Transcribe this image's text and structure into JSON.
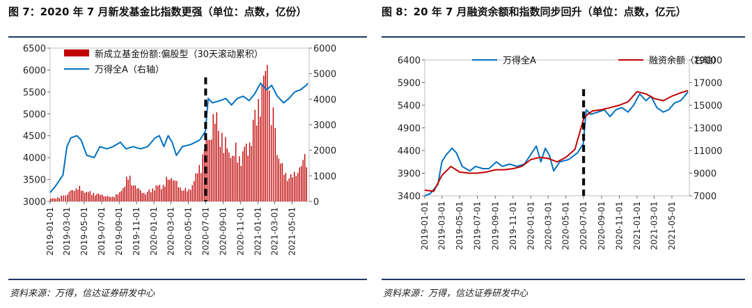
{
  "left": {
    "title": "图 7：2020 年 7 月新发基金比指数更强（单位：点数，亿份）",
    "source": "资料来源：万得，信达证券研发中心"
  },
  "right": {
    "title": "图 8：20 年 7 月融资余额和指数同步回升（单位：点数，亿元）",
    "source": "资料来源：万得，信达证券研发中心"
  },
  "chart_data": [
    {
      "type": "bar",
      "title": "",
      "legend": [
        "新成立基金份额:偏股型（30天滚动累积）",
        "万得全A（右轴）"
      ],
      "legend_position": "top-left",
      "x_ticks": [
        "2019-01-01",
        "2019-03-01",
        "2019-05-01",
        "2019-07-01",
        "2019-09-01",
        "2019-11-01",
        "2020-01-01",
        "2020-03-01",
        "2020-05-01",
        "2020-07-01",
        "2020-09-01",
        "2020-11-01",
        "2021-01-01",
        "2021-03-01",
        "2021-05-01"
      ],
      "left_axis": {
        "min": 3000,
        "max": 6500,
        "ticks": [
          3000,
          3500,
          4000,
          4500,
          5000,
          5500,
          6000,
          6500
        ]
      },
      "right_axis": {
        "min": 0,
        "max": 6000,
        "ticks": [
          0,
          1000,
          2000,
          3000,
          4000,
          5000,
          6000
        ]
      },
      "event_marker_date": "2020-07-01",
      "series": [
        {
          "name": "新成立基金份额:偏股型（30天滚动累积）",
          "kind": "bar",
          "color": "#c00000",
          "axis": "right",
          "x": [
            "2019-01-01",
            "2019-02-01",
            "2019-03-01",
            "2019-04-01",
            "2019-05-01",
            "2019-06-01",
            "2019-07-01",
            "2019-08-01",
            "2019-09-01",
            "2019-10-01",
            "2019-11-01",
            "2019-12-01",
            "2020-01-01",
            "2020-02-01",
            "2020-03-01",
            "2020-04-01",
            "2020-05-01",
            "2020-06-01",
            "2020-07-01",
            "2020-08-01",
            "2020-09-01",
            "2020-10-01",
            "2020-11-01",
            "2020-12-01",
            "2021-01-01",
            "2021-02-01",
            "2021-03-01",
            "2021-04-01",
            "2021-05-01",
            "2021-06-01",
            "2021-06-25"
          ],
          "values": [
            100,
            150,
            300,
            550,
            400,
            300,
            250,
            150,
            300,
            900,
            500,
            300,
            550,
            650,
            1000,
            500,
            400,
            1050,
            2100,
            3200,
            2200,
            1900,
            1800,
            2300,
            3800,
            5100,
            2300,
            1000,
            900,
            1400,
            1900
          ]
        },
        {
          "name": "万得全A（右轴）",
          "kind": "line",
          "color": "#0070c0",
          "axis": "left",
          "x": [
            "2019-01-01",
            "2019-01-20",
            "2019-02-15",
            "2019-03-01",
            "2019-03-15",
            "2019-04-05",
            "2019-04-20",
            "2019-05-10",
            "2019-06-05",
            "2019-06-25",
            "2019-07-20",
            "2019-08-10",
            "2019-09-05",
            "2019-09-25",
            "2019-10-20",
            "2019-11-15",
            "2019-12-10",
            "2020-01-05",
            "2020-01-20",
            "2020-02-05",
            "2020-02-20",
            "2020-03-05",
            "2020-03-20",
            "2020-04-10",
            "2020-05-10",
            "2020-06-10",
            "2020-06-30",
            "2020-07-10",
            "2020-07-25",
            "2020-08-20",
            "2020-09-10",
            "2020-09-30",
            "2020-10-20",
            "2020-11-10",
            "2020-12-01",
            "2020-12-20",
            "2021-01-10",
            "2021-02-01",
            "2021-02-18",
            "2021-03-10",
            "2021-04-01",
            "2021-04-20",
            "2021-05-10",
            "2021-05-31",
            "2021-06-20",
            "2021-06-25"
          ],
          "values": [
            3200,
            3350,
            3600,
            4250,
            4450,
            4500,
            4400,
            4050,
            4000,
            4250,
            4200,
            4250,
            4350,
            4200,
            4250,
            4200,
            4250,
            4450,
            4500,
            4250,
            4500,
            4350,
            4050,
            4250,
            4300,
            4400,
            4600,
            5350,
            5250,
            5300,
            5350,
            5200,
            5350,
            5400,
            5300,
            5450,
            5700,
            5550,
            5650,
            5400,
            5250,
            5350,
            5500,
            5550,
            5650,
            5700
          ]
        }
      ]
    },
    {
      "type": "line",
      "title": "",
      "legend": [
        "万得全A",
        "融资余额（右轴）"
      ],
      "legend_position": "top-center",
      "x_ticks": [
        "2019-01-01",
        "2019-03-01",
        "2019-05-01",
        "2019-07-01",
        "2019-09-01",
        "2019-11-01",
        "2020-01-01",
        "2020-03-01",
        "2020-05-01",
        "2020-07-01",
        "2020-09-01",
        "2020-11-01",
        "2021-01-01",
        "2021-03-01",
        "2021-05-01"
      ],
      "left_axis": {
        "min": 3400,
        "max": 6400,
        "ticks": [
          3400,
          3900,
          4400,
          4900,
          5400,
          5900,
          6400
        ]
      },
      "right_axis": {
        "min": 7000,
        "max": 19000,
        "ticks": [
          7000,
          9000,
          11000,
          13000,
          15000,
          17000,
          19000
        ]
      },
      "event_marker_date": "2020-07-01",
      "series": [
        {
          "name": "万得全A",
          "kind": "line",
          "color": "#0070c0",
          "axis": "left",
          "x": [
            "2019-01-01",
            "2019-01-20",
            "2019-02-15",
            "2019-03-01",
            "2019-03-15",
            "2019-04-05",
            "2019-04-20",
            "2019-05-10",
            "2019-06-05",
            "2019-06-25",
            "2019-07-20",
            "2019-08-10",
            "2019-09-05",
            "2019-09-25",
            "2019-10-20",
            "2019-11-15",
            "2019-12-10",
            "2020-01-05",
            "2020-01-20",
            "2020-02-05",
            "2020-02-20",
            "2020-03-05",
            "2020-03-20",
            "2020-04-10",
            "2020-05-10",
            "2020-06-10",
            "2020-06-30",
            "2020-07-10",
            "2020-07-25",
            "2020-08-20",
            "2020-09-10",
            "2020-09-30",
            "2020-10-20",
            "2020-11-10",
            "2020-12-01",
            "2020-12-20",
            "2021-01-10",
            "2021-02-01",
            "2021-02-18",
            "2021-03-10",
            "2021-04-01",
            "2021-04-20",
            "2021-05-10",
            "2021-05-31",
            "2021-06-20",
            "2021-06-25"
          ],
          "values": [
            3400,
            3450,
            3650,
            4150,
            4300,
            4450,
            4350,
            4050,
            3950,
            4050,
            4000,
            4000,
            4150,
            4050,
            4100,
            4050,
            4100,
            4350,
            4500,
            4150,
            4450,
            4300,
            3950,
            4150,
            4200,
            4350,
            4550,
            5300,
            5200,
            5250,
            5300,
            5150,
            5300,
            5350,
            5250,
            5400,
            5650,
            5500,
            5600,
            5350,
            5250,
            5300,
            5450,
            5500,
            5650,
            5700
          ]
        },
        {
          "name": "融资余额（右轴）",
          "kind": "line",
          "color": "#c00000",
          "axis": "right",
          "x": [
            "2019-01-01",
            "2019-02-01",
            "2019-03-01",
            "2019-04-01",
            "2019-05-01",
            "2019-06-01",
            "2019-07-01",
            "2019-08-01",
            "2019-09-01",
            "2019-10-01",
            "2019-11-01",
            "2019-12-01",
            "2020-01-01",
            "2020-02-01",
            "2020-03-01",
            "2020-04-01",
            "2020-05-01",
            "2020-06-01",
            "2020-07-01",
            "2020-07-15",
            "2020-08-01",
            "2020-09-01",
            "2020-10-01",
            "2020-11-01",
            "2020-12-01",
            "2021-01-01",
            "2021-02-01",
            "2021-03-01",
            "2021-04-01",
            "2021-05-01",
            "2021-06-01",
            "2021-06-25"
          ],
          "values": [
            7500,
            7400,
            8800,
            9600,
            9100,
            9000,
            9000,
            9100,
            9300,
            9300,
            9400,
            9600,
            10200,
            10400,
            10300,
            10000,
            10400,
            11100,
            13800,
            14200,
            14500,
            14600,
            14800,
            15000,
            15300,
            16200,
            16000,
            15600,
            15400,
            15800,
            16100,
            16300
          ]
        }
      ]
    }
  ]
}
